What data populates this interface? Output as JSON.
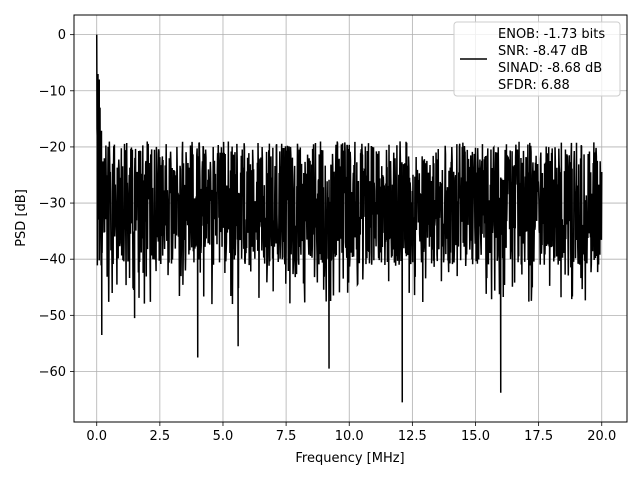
{
  "chart_data": {
    "type": "line",
    "title": "",
    "xlabel": "Frequency [MHz]",
    "ylabel": "PSD [dB]",
    "xlim": [
      -0.9,
      21.0
    ],
    "ylim": [
      -69,
      3.5
    ],
    "xticks": [
      0.0,
      2.5,
      5.0,
      7.5,
      10.0,
      12.5,
      15.0,
      17.5,
      20.0
    ],
    "xtick_labels": [
      "0.0",
      "2.5",
      "5.0",
      "7.5",
      "10.0",
      "12.5",
      "15.0",
      "17.5",
      "20.0"
    ],
    "yticks": [
      0,
      -10,
      -20,
      -30,
      -40,
      -50,
      -60
    ],
    "ytick_labels": [
      "0",
      "−10",
      "−20",
      "−30",
      "−40",
      "−50",
      "−60"
    ],
    "grid": true,
    "legend_position": "top-right",
    "series": [
      {
        "name": "ENOB: -1.73 bits\nSNR: -8.47 dB\nSINAD: -8.68 dB\nSFDR: 6.88",
        "color": "#000000",
        "x_start": 0.0,
        "x_end": 20.0,
        "noise_floor_mean": -31,
        "noise_floor_high": -20,
        "noise_floor_low": -40,
        "peak": {
          "x": 0.0,
          "y": 0.0
        },
        "notable_points": [
          {
            "x": 0.02,
            "y": -18
          },
          {
            "x": 0.05,
            "y": -7
          },
          {
            "x": 0.1,
            "y": -8
          },
          {
            "x": 0.13,
            "y": -13
          },
          {
            "x": 0.2,
            "y": -53.5
          },
          {
            "x": 1.5,
            "y": -50.5
          },
          {
            "x": 4.0,
            "y": -57.5
          },
          {
            "x": 5.6,
            "y": -55.5
          },
          {
            "x": 9.2,
            "y": -59.5
          },
          {
            "x": 12.1,
            "y": -65.5
          },
          {
            "x": 16.0,
            "y": -63.8
          }
        ]
      }
    ],
    "legend_lines": [
      "ENOB: -1.73 bits",
      "SNR: -8.47 dB",
      "SINAD: -8.68 dB",
      "SFDR: 6.88"
    ]
  }
}
